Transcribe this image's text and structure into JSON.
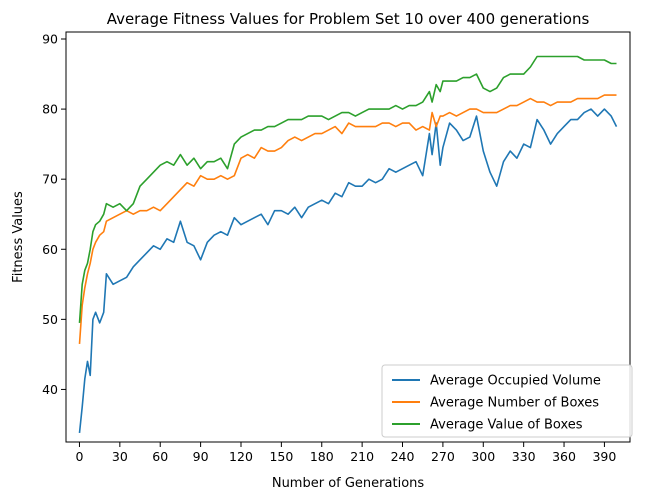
{
  "chart_data": {
    "type": "line",
    "title": "Average Fitness Values for Problem Set 10 over 400 generations",
    "xlabel": "Number of Generations",
    "ylabel": "Fitness Values",
    "xlim": [
      -10,
      409
    ],
    "ylim": [
      32.5,
      91
    ],
    "xticks": [
      0,
      30,
      60,
      90,
      120,
      150,
      180,
      210,
      240,
      270,
      300,
      330,
      360,
      390
    ],
    "yticks": [
      40,
      50,
      60,
      70,
      80,
      90
    ],
    "legend_position": "lower-right",
    "grid": false,
    "series": [
      {
        "name": "Average Occupied Volume",
        "color": "#1f77b4",
        "x": [
          0,
          2,
          4,
          6,
          8,
          10,
          12,
          15,
          18,
          20,
          25,
          30,
          35,
          40,
          45,
          50,
          55,
          60,
          65,
          70,
          75,
          80,
          85,
          90,
          95,
          100,
          105,
          110,
          115,
          120,
          125,
          130,
          135,
          140,
          145,
          150,
          155,
          160,
          165,
          170,
          175,
          180,
          185,
          190,
          195,
          200,
          205,
          210,
          215,
          220,
          225,
          230,
          235,
          240,
          245,
          250,
          255,
          260,
          262,
          265,
          268,
          270,
          275,
          280,
          285,
          290,
          295,
          300,
          305,
          310,
          315,
          320,
          325,
          330,
          335,
          340,
          345,
          350,
          355,
          360,
          365,
          370,
          375,
          380,
          385,
          390,
          395,
          399
        ],
        "values": [
          33.8,
          37.5,
          41.5,
          44,
          42,
          50,
          51,
          49.5,
          51,
          56.5,
          55,
          55.5,
          56,
          57.5,
          58.5,
          59.5,
          60.5,
          60,
          61.5,
          61,
          64,
          61,
          60.5,
          58.5,
          61,
          62,
          62.5,
          62,
          64.5,
          63.5,
          64,
          64.5,
          65,
          63.5,
          65.5,
          65.5,
          65,
          66,
          64.5,
          66,
          66.5,
          67,
          66.5,
          68,
          67.5,
          69.5,
          69,
          69,
          70,
          69.5,
          70,
          71.5,
          71,
          71.5,
          72,
          72.5,
          70.5,
          76.5,
          73.5,
          78,
          72,
          74.5,
          78,
          77,
          75.5,
          76,
          79,
          74,
          71,
          69,
          72.5,
          74,
          73,
          75,
          74.5,
          78.5,
          77,
          75,
          76.5,
          77.5,
          78.5,
          78.5,
          79.5,
          80,
          79,
          80,
          79,
          77.5
        ]
      },
      {
        "name": "Average Number of Boxes",
        "color": "#ff7f0e",
        "x": [
          0,
          2,
          4,
          6,
          8,
          10,
          12,
          15,
          18,
          20,
          25,
          30,
          35,
          40,
          45,
          50,
          55,
          60,
          65,
          70,
          75,
          80,
          85,
          90,
          95,
          100,
          105,
          110,
          115,
          120,
          125,
          130,
          135,
          140,
          145,
          150,
          155,
          160,
          165,
          170,
          175,
          180,
          185,
          190,
          195,
          200,
          205,
          210,
          215,
          220,
          225,
          230,
          235,
          240,
          245,
          250,
          255,
          260,
          262,
          265,
          268,
          270,
          275,
          280,
          285,
          290,
          295,
          300,
          305,
          310,
          315,
          320,
          325,
          330,
          335,
          340,
          345,
          350,
          355,
          360,
          365,
          370,
          375,
          380,
          385,
          390,
          395,
          399
        ],
        "values": [
          46.5,
          52,
          54.5,
          56.5,
          58,
          60,
          61,
          62,
          62.5,
          64,
          64.5,
          65,
          65.5,
          65,
          65.5,
          65.5,
          66,
          65.5,
          66.5,
          67.5,
          68.5,
          69.5,
          69,
          70.5,
          70,
          70,
          70.5,
          70,
          70.5,
          73,
          73.5,
          73,
          74.5,
          74,
          74,
          74.5,
          75.5,
          76,
          75.5,
          76,
          76.5,
          76.5,
          77,
          77.5,
          76.5,
          78,
          77.5,
          77.5,
          77.5,
          77.5,
          78,
          78,
          77.5,
          78,
          78,
          77,
          77.5,
          77,
          79.5,
          77.5,
          79,
          79,
          79.5,
          79,
          79.5,
          80,
          80,
          79.5,
          79.5,
          79.5,
          80,
          80.5,
          80.5,
          81,
          81.5,
          81,
          81,
          80.5,
          81,
          81,
          81,
          81.5,
          81.5,
          81.5,
          81.5,
          82,
          82,
          82
        ]
      },
      {
        "name": "Average Value of Boxes",
        "color": "#2ca02c",
        "x": [
          0,
          2,
          4,
          6,
          8,
          10,
          12,
          15,
          18,
          20,
          25,
          30,
          35,
          40,
          45,
          50,
          55,
          60,
          65,
          70,
          75,
          80,
          85,
          90,
          95,
          100,
          105,
          110,
          115,
          120,
          125,
          130,
          135,
          140,
          145,
          150,
          155,
          160,
          165,
          170,
          175,
          180,
          185,
          190,
          195,
          200,
          205,
          210,
          215,
          220,
          225,
          230,
          235,
          240,
          245,
          250,
          255,
          260,
          262,
          265,
          268,
          270,
          275,
          280,
          285,
          290,
          295,
          300,
          305,
          310,
          315,
          320,
          325,
          330,
          335,
          340,
          345,
          350,
          355,
          360,
          365,
          370,
          375,
          380,
          385,
          390,
          395,
          399
        ],
        "values": [
          49.5,
          55,
          57,
          58,
          60,
          62.5,
          63.5,
          64,
          65,
          66.5,
          66,
          66.5,
          65.5,
          66.5,
          69,
          70,
          71,
          72,
          72.5,
          72,
          73.5,
          72,
          73,
          71.5,
          72.5,
          72.5,
          73,
          71.5,
          75,
          76,
          76.5,
          77,
          77,
          77.5,
          77.5,
          78,
          78.5,
          78.5,
          78.5,
          79,
          79,
          79,
          78.5,
          79,
          79.5,
          79.5,
          79,
          79.5,
          80,
          80,
          80,
          80,
          80.5,
          80,
          80.5,
          80.5,
          81,
          82.5,
          81,
          83.5,
          82.5,
          84,
          84,
          84,
          84.5,
          84.5,
          85,
          83,
          82.5,
          83,
          84.5,
          85,
          85,
          85,
          86,
          87.5,
          87.5,
          87.5,
          87.5,
          87.5,
          87.5,
          87.5,
          87,
          87,
          87,
          87,
          86.5,
          86.5
        ]
      }
    ]
  }
}
